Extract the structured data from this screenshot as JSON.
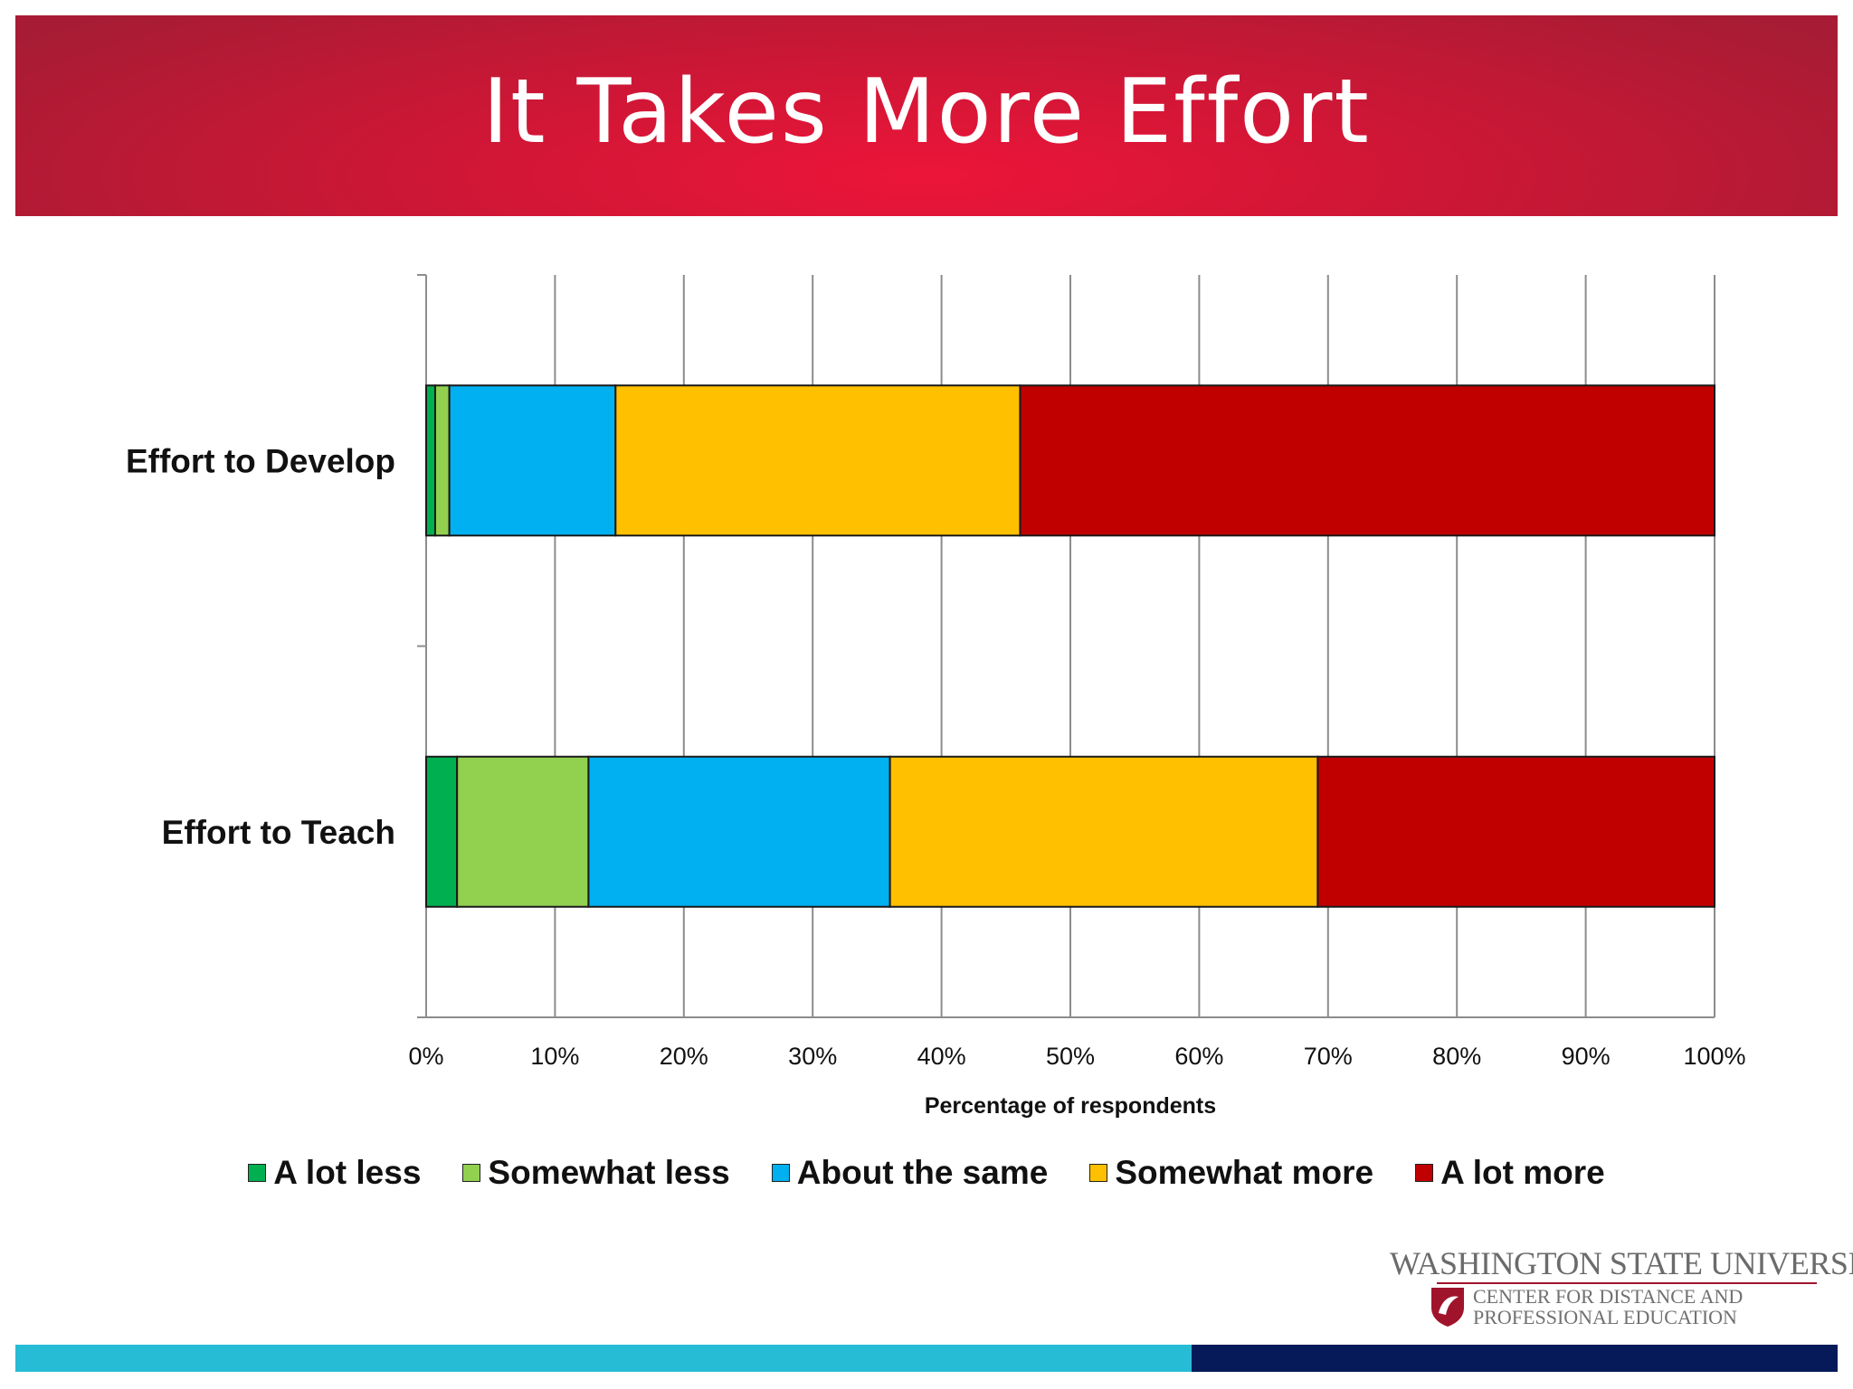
{
  "slide": {
    "title": "It Takes More Effort"
  },
  "chart_data": {
    "type": "bar",
    "orientation": "horizontal",
    "stacked": "100%",
    "categories": [
      "Effort to Develop",
      "Effort to Teach"
    ],
    "series": [
      {
        "name": "A lot less",
        "color": "#00b050",
        "values": [
          0.7,
          2.4
        ]
      },
      {
        "name": "Somewhat less",
        "color": "#92d050",
        "values": [
          1.1,
          10.2
        ]
      },
      {
        "name": "About the same",
        "color": "#00b0f0",
        "values": [
          12.9,
          23.4
        ]
      },
      {
        "name": "Somewhat more",
        "color": "#ffc000",
        "values": [
          31.4,
          33.2
        ]
      },
      {
        "name": "A lot more",
        "color": "#c00000",
        "values": [
          53.9,
          30.8
        ]
      }
    ],
    "xlabel": "Percentage of respondents",
    "xlim": [
      0,
      100
    ],
    "xticks": [
      "0%",
      "10%",
      "20%",
      "30%",
      "40%",
      "50%",
      "60%",
      "70%",
      "80%",
      "90%",
      "100%"
    ],
    "grid": "vertical",
    "legend": "bottom"
  },
  "logo": {
    "name": "WASHINGTON STATE UNIVERSITY",
    "line1": "CENTER FOR DISTANCE AND",
    "line2": "PROFESSIONAL EDUCATION"
  }
}
